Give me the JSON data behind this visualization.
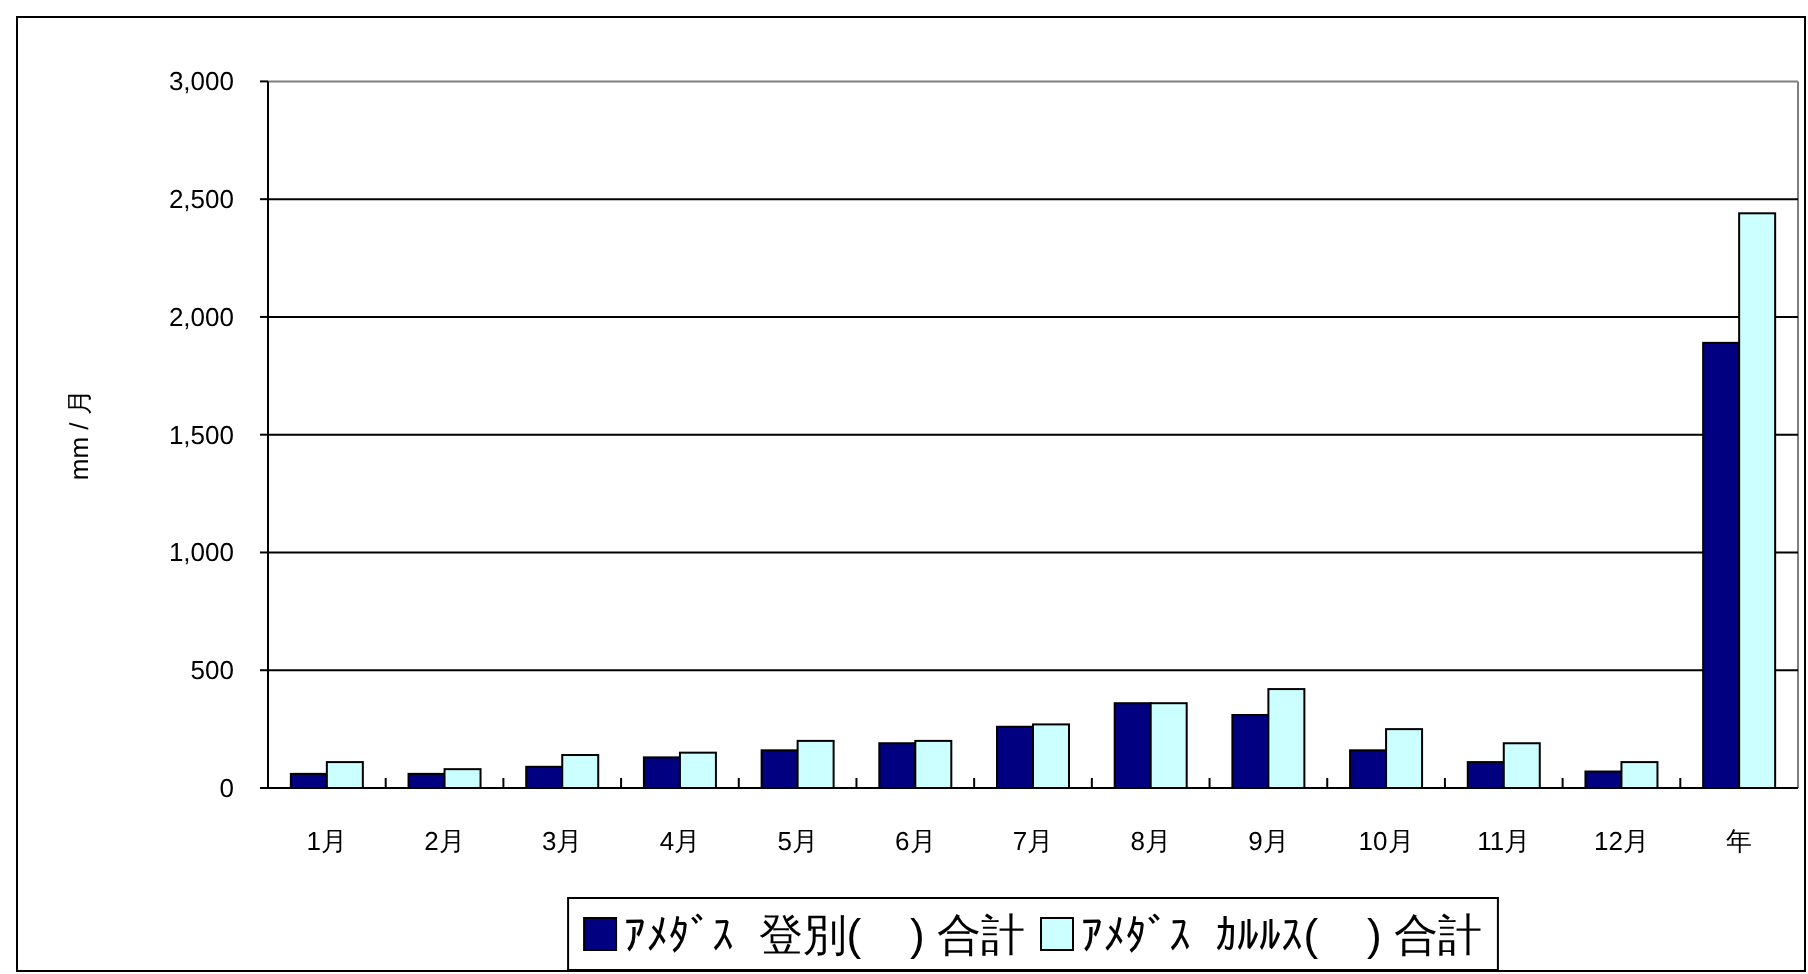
{
  "chart_data": {
    "type": "bar",
    "ylabel": "mm / 月",
    "categories": [
      "1月",
      "2月",
      "3月",
      "4月",
      "5月",
      "6月",
      "7月",
      "8月",
      "9月",
      "10月",
      "11月",
      "12月",
      "年"
    ],
    "series": [
      {
        "name": "ｱﾒﾀﾞｽ  登別(    ) 合計",
        "color": "#000080",
        "values": [
          60,
          60,
          90,
          130,
          160,
          190,
          260,
          360,
          310,
          160,
          110,
          70,
          1890
        ]
      },
      {
        "name": "ｱﾒﾀﾞｽ  ｶﾙﾙｽ(    ) 合計",
        "color": "#ccffff",
        "values": [
          110,
          80,
          140,
          150,
          200,
          200,
          270,
          360,
          420,
          250,
          190,
          110,
          2440
        ]
      }
    ],
    "ylim": [
      0,
      3000
    ],
    "yticks": [
      0,
      500,
      {
        "value": 1000,
        "label": "1,000"
      },
      {
        "value": 1500,
        "label": "1,500"
      },
      {
        "value": 2000,
        "label": "2,000"
      },
      {
        "value": 2500,
        "label": "2,500"
      },
      {
        "value": 3000,
        "label": "3,000"
      }
    ],
    "grid": "y",
    "legend": "bottom"
  }
}
